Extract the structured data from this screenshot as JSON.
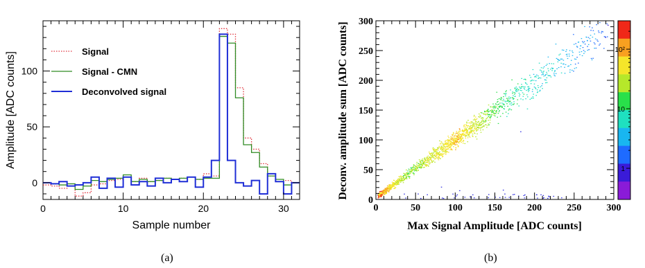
{
  "chart_data": [
    {
      "type": "line",
      "panel_label": "(a)",
      "xlabel": "Sample number",
      "ylabel": "Amplitude [ADC counts]",
      "xlim": [
        0,
        32
      ],
      "ylim": [
        -15,
        145
      ],
      "xticks": [
        0,
        10,
        20,
        30
      ],
      "yticks": [
        0,
        50,
        100
      ],
      "legend_position": "top-left",
      "series": [
        {
          "name": "Signal",
          "style": "dotted",
          "color": "#e0303a",
          "values": [
            -2,
            -3,
            -5,
            -3,
            -12,
            -9,
            -2,
            -1,
            2,
            3,
            5,
            1,
            4,
            1,
            2,
            4,
            3,
            4,
            5,
            3,
            8,
            6,
            138,
            133,
            85,
            40,
            30,
            17,
            6,
            1,
            2,
            0
          ]
        },
        {
          "name": "Signal - CMN",
          "style": "solid",
          "color": "#2e8b22",
          "values": [
            0,
            -1,
            -2,
            -1,
            -6,
            -3,
            2,
            1,
            3,
            4,
            7,
            1,
            3,
            1,
            2,
            4,
            3,
            4,
            5,
            3,
            4,
            4,
            131,
            125,
            76,
            34,
            27,
            14,
            6,
            3,
            -2,
            0
          ]
        },
        {
          "name": "Deconvolved signal",
          "style": "solid",
          "color": "#1f2ed6",
          "values": [
            0,
            -1,
            1,
            -3,
            -2,
            0,
            5,
            -5,
            4,
            -4,
            5,
            -2,
            1,
            -3,
            4,
            0,
            3,
            1,
            5,
            -4,
            5,
            20,
            133,
            20,
            0,
            -3,
            2,
            -10,
            8,
            1,
            -10,
            0
          ]
        }
      ]
    },
    {
      "type": "heatmap",
      "panel_label": "(b)",
      "xlabel": "Max Signal Amplitude [ADC counts]",
      "ylabel": "Deconv. amplitude sum [ADC counts]",
      "xlim": [
        0,
        300
      ],
      "ylim": [
        0,
        300
      ],
      "xticks": [
        0,
        50,
        100,
        150,
        200,
        250,
        300
      ],
      "yticks": [
        0,
        50,
        100,
        150,
        200,
        250,
        300
      ],
      "colorbar": {
        "scale": "log",
        "range": [
          0.3,
          300
        ],
        "ticks": [
          "1",
          "10",
          "10²"
        ]
      },
      "band": {
        "slope": 0.97,
        "description_points": [
          [
            5,
            5
          ],
          [
            100,
            100
          ],
          [
            150,
            150
          ],
          [
            290,
            295
          ]
        ]
      },
      "density_profile": [
        {
          "x": 2,
          "count": 200
        },
        {
          "x": 10,
          "count": 80
        },
        {
          "x": 40,
          "count": 15
        },
        {
          "x": 80,
          "count": 40
        },
        {
          "x": 100,
          "count": 60
        },
        {
          "x": 120,
          "count": 35
        },
        {
          "x": 160,
          "count": 8
        },
        {
          "x": 220,
          "count": 3
        },
        {
          "x": 290,
          "count": 1
        }
      ]
    }
  ],
  "colors": {
    "frame": "#000000",
    "background": "#ffffff"
  }
}
